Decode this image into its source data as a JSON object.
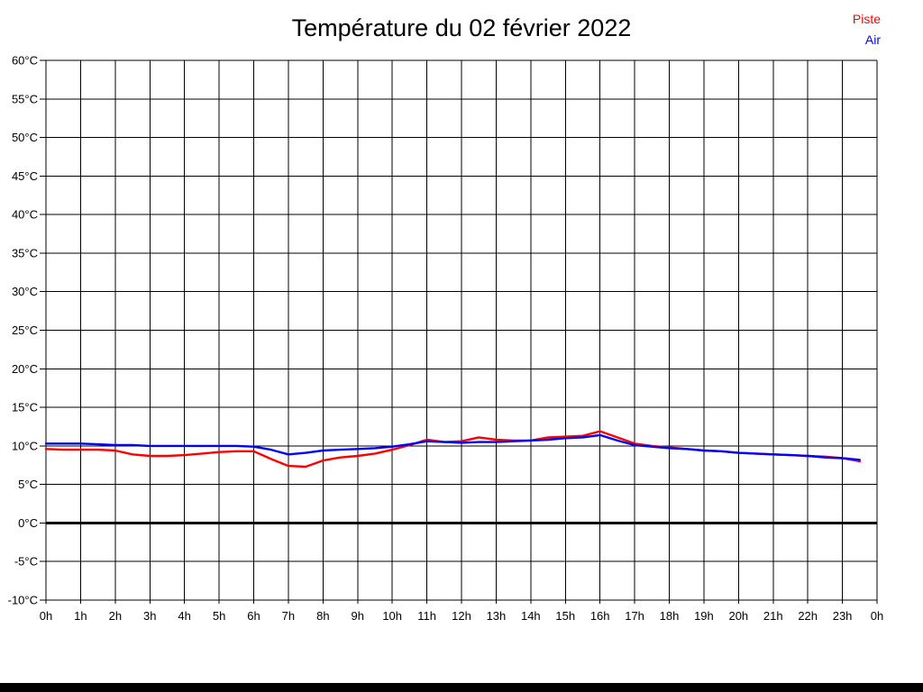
{
  "title": "Température du 02 février 2022",
  "legend": {
    "items": [
      {
        "label": "Piste",
        "color": "#ff0000"
      },
      {
        "label": "Air",
        "color": "#0000ff"
      }
    ]
  },
  "colors": {
    "grid": "#000000",
    "axis_text": "#000000",
    "zero_line": "#000000",
    "background": "#ffffff"
  },
  "chart_data": {
    "type": "line",
    "title": "Température du 02 février 2022",
    "xlabel": "",
    "ylabel": "",
    "ylim": [
      -10,
      60
    ],
    "y_tick_step": 5,
    "y_tick_labels": [
      "-10°C",
      "-5°C",
      "0°C",
      "5°C",
      "10°C",
      "15°C",
      "20°C",
      "25°C",
      "30°C",
      "35°C",
      "40°C",
      "45°C",
      "50°C",
      "55°C",
      "60°C"
    ],
    "x_range_hours": [
      0,
      24
    ],
    "x_tick_labels": [
      "0h",
      "1h",
      "2h",
      "3h",
      "4h",
      "5h",
      "6h",
      "7h",
      "8h",
      "9h",
      "10h",
      "11h",
      "12h",
      "13h",
      "14h",
      "15h",
      "16h",
      "17h",
      "18h",
      "19h",
      "20h",
      "21h",
      "22h",
      "23h",
      "0h"
    ],
    "grid": true,
    "zero_line": true,
    "legend_position": "top-right",
    "x": [
      0,
      0.5,
      1,
      1.5,
      2,
      2.5,
      3,
      3.5,
      4,
      4.5,
      5,
      5.5,
      6,
      6.5,
      7,
      7.5,
      8,
      8.5,
      9,
      9.5,
      10,
      10.5,
      11,
      11.5,
      12,
      12.5,
      13,
      13.5,
      14,
      14.5,
      15,
      15.5,
      16,
      16.5,
      17,
      17.5,
      18,
      18.5,
      19,
      19.5,
      20,
      20.5,
      21,
      21.5,
      22,
      22.5,
      23,
      23.5
    ],
    "series": [
      {
        "name": "Piste",
        "color": "#ff0000",
        "values": [
          9.6,
          9.5,
          9.5,
          9.5,
          9.4,
          8.9,
          8.7,
          8.7,
          8.8,
          9.0,
          9.2,
          9.3,
          9.3,
          8.3,
          7.4,
          7.3,
          8.1,
          8.5,
          8.7,
          9.0,
          9.5,
          10.1,
          10.8,
          10.5,
          10.6,
          11.1,
          10.8,
          10.7,
          10.7,
          11.1,
          11.2,
          11.3,
          11.9,
          11.1,
          10.3,
          10.0,
          9.8,
          9.6,
          9.4,
          9.3,
          9.1,
          9.0,
          8.9,
          8.8,
          8.7,
          8.6,
          8.4,
          8.0
        ]
      },
      {
        "name": "Air",
        "color": "#0000ff",
        "values": [
          10.3,
          10.3,
          10.3,
          10.2,
          10.1,
          10.1,
          10.0,
          10.0,
          10.0,
          10.0,
          10.0,
          10.0,
          9.9,
          9.5,
          8.9,
          9.1,
          9.4,
          9.5,
          9.6,
          9.7,
          9.9,
          10.2,
          10.6,
          10.5,
          10.4,
          10.5,
          10.5,
          10.6,
          10.7,
          10.8,
          11.0,
          11.1,
          11.4,
          10.7,
          10.1,
          9.9,
          9.7,
          9.6,
          9.4,
          9.3,
          9.1,
          9.0,
          8.9,
          8.8,
          8.7,
          8.5,
          8.4,
          8.2
        ]
      }
    ]
  }
}
